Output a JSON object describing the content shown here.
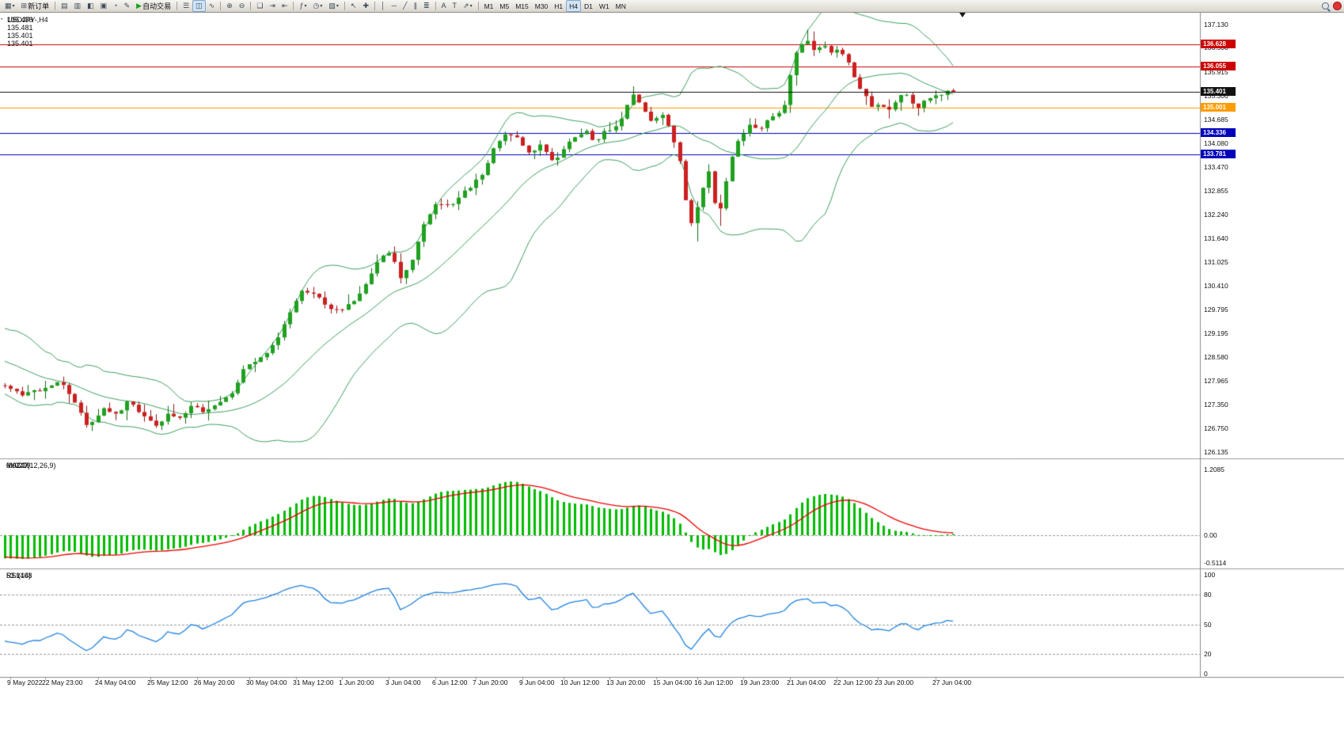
{
  "toolbar": {
    "items": [
      {
        "name": "new-chart-button",
        "icon": "▦",
        "icon_name": "new-chart-icon",
        "arrow": true
      },
      {
        "name": "new-order-button",
        "icon": "⊞",
        "icon_name": "new-order-icon",
        "label": "新订单"
      },
      {
        "type": "sep"
      },
      {
        "name": "market-watch-button",
        "icon": "▤",
        "icon_name": "market-watch-icon"
      },
      {
        "name": "data-window-button",
        "icon": "▥",
        "icon_name": "data-window-icon"
      },
      {
        "name": "navigator-button",
        "icon": "◧",
        "icon_name": "navigator-icon"
      },
      {
        "name": "terminal-button",
        "icon": "▣",
        "icon_name": "terminal-icon"
      },
      {
        "name": "strategy-tester-button",
        "icon": "◔",
        "icon_name": "strategy-tester-icon"
      },
      {
        "name": "metaeditor-button",
        "icon": "✎",
        "icon_name": "metaeditor-icon"
      },
      {
        "name": "autotrading-button",
        "icon": "▶",
        "icon_name": "autotrading-play-icon",
        "icon_color": "#17a017",
        "label": "自动交易"
      },
      {
        "type": "sep"
      },
      {
        "name": "bar-chart-button",
        "icon": "☰",
        "icon_name": "bar-chart-icon"
      },
      {
        "name": "candlestick-chart-button",
        "icon": "◫",
        "icon_name": "candlestick-chart-icon",
        "active": true
      },
      {
        "name": "line-chart-button",
        "icon": "∿",
        "icon_name": "line-chart-icon"
      },
      {
        "type": "sep"
      },
      {
        "name": "zoom-in-button",
        "icon": "⊕",
        "icon_name": "zoom-in-icon"
      },
      {
        "name": "zoom-out-button",
        "icon": "⊖",
        "icon_name": "zoom-out-icon"
      },
      {
        "type": "sep"
      },
      {
        "name": "tile-windows-button",
        "icon": "❏",
        "icon_name": "tile-windows-icon"
      },
      {
        "name": "auto-scroll-button",
        "icon": "⇥",
        "icon_name": "auto-scroll-icon"
      },
      {
        "name": "chart-shift-button",
        "icon": "⇤",
        "icon_name": "chart-shift-icon"
      },
      {
        "type": "sep"
      },
      {
        "name": "indicators-button",
        "icon": "ƒ",
        "icon_name": "indicators-icon",
        "arrow": true
      },
      {
        "name": "periods-button",
        "icon": "◷",
        "icon_name": "periods-icon",
        "arrow": true
      },
      {
        "name": "templates-button",
        "icon": "▨",
        "icon_name": "templates-icon",
        "arrow": true
      },
      {
        "type": "sep"
      },
      {
        "name": "cursor-button",
        "icon": "↖",
        "icon_name": "cursor-icon"
      },
      {
        "name": "crosshair-button",
        "icon": "✚",
        "icon_name": "crosshair-icon"
      },
      {
        "type": "sep"
      },
      {
        "name": "vertical-line-button",
        "icon": "│",
        "icon_name": "vertical-line-icon"
      },
      {
        "name": "horizontal-line-button",
        "icon": "─",
        "icon_name": "horizontal-line-icon"
      },
      {
        "name": "trendline-button",
        "icon": "╱",
        "icon_name": "trendline-icon"
      },
      {
        "name": "channel-button",
        "icon": "∥",
        "icon_name": "equidistant-channel-icon"
      },
      {
        "name": "fibonacci-button",
        "icon": "≣",
        "icon_name": "fibonacci-icon"
      },
      {
        "type": "sep"
      },
      {
        "name": "text-button",
        "icon": "A",
        "icon_name": "text-icon"
      },
      {
        "name": "text-label-button",
        "icon": "T",
        "icon_name": "text-label-icon"
      },
      {
        "name": "arrows-button",
        "icon": "⇗",
        "icon_name": "arrows-icon",
        "arrow": true
      },
      {
        "type": "sep"
      }
    ],
    "timeframes": [
      "M1",
      "M5",
      "M15",
      "M30",
      "H1",
      "H4",
      "D1",
      "W1",
      "MN"
    ],
    "active_timeframe": "H4"
  },
  "chart": {
    "title": "USDJPY-,H4",
    "ohlc": "135.438 135.481 135.401 135.401",
    "price_axis_labels": [
      "137.130",
      "136.530",
      "135.915",
      "135.300",
      "134.685",
      "134.080",
      "133.470",
      "132.855",
      "132.240",
      "131.640",
      "131.025",
      "130.410",
      "129.795",
      "129.195",
      "128.580",
      "127.965",
      "127.350",
      "126.750",
      "126.135"
    ],
    "levels": [
      {
        "value": 136.628,
        "tag": "136.628",
        "color": "#cc0000"
      },
      {
        "value": 136.055,
        "tag": "136.055",
        "color": "#cc0000"
      },
      {
        "value": 135.001,
        "tag": "135.001",
        "color": "#ff9c00"
      },
      {
        "value": 134.336,
        "tag": "134.336",
        "color": "#0000bb"
      },
      {
        "value": 133.781,
        "tag": "133.781",
        "color": "#0000bb"
      }
    ],
    "bid": {
      "value": 135.401,
      "tag": "135.401",
      "color": "#111111"
    },
    "time_axis": [
      {
        "i": 1,
        "label": "9 May 2022"
      },
      {
        "i": 7,
        "label": "22 May 23:00"
      },
      {
        "i": 16,
        "label": "24 May 04:00"
      },
      {
        "i": 25,
        "label": "25 May 12:00"
      },
      {
        "i": 33,
        "label": "26 May 20:00"
      },
      {
        "i": 42,
        "label": "30 May 04:00"
      },
      {
        "i": 50,
        "label": "31 May 12:00"
      },
      {
        "i": 58,
        "label": "1 Jun 20:00"
      },
      {
        "i": 66,
        "label": "3 Jun 04:00"
      },
      {
        "i": 74,
        "label": "6 Jun 12:00"
      },
      {
        "i": 81,
        "label": "7 Jun 20:00"
      },
      {
        "i": 89,
        "label": "9 Jun 04:00"
      },
      {
        "i": 96,
        "label": "10 Jun 12:00"
      },
      {
        "i": 104,
        "label": "13 Jun 20:00"
      },
      {
        "i": 112,
        "label": "15 Jun 04:00"
      },
      {
        "i": 119,
        "label": "16 Jun 12:00"
      },
      {
        "i": 127,
        "label": "19 Jun 23:00"
      },
      {
        "i": 135,
        "label": "21 Jun 04:00"
      },
      {
        "i": 143,
        "label": "22 Jun 12:00"
      },
      {
        "i": 150,
        "label": "23 Jun 20:00"
      },
      {
        "i": 160,
        "label": "27 Jun 04:00"
      }
    ]
  },
  "macd": {
    "name": "MACD(12,26,9)",
    "value": "0.0247",
    "signal": "-0.0219",
    "scale": [
      {
        "v": 1.2085,
        "label": "1.2085"
      },
      {
        "v": 0,
        "label": "0.00"
      },
      {
        "v": -0.5114,
        "label": "-0.5114"
      }
    ]
  },
  "rsi": {
    "name": "RSI(14)",
    "value": "53.1468",
    "scale": [
      {
        "v": 100,
        "label": "100"
      },
      {
        "v": 80,
        "label": "80"
      },
      {
        "v": 50,
        "label": "50"
      },
      {
        "v": 20,
        "label": "20"
      },
      {
        "v": 0,
        "label": "0"
      }
    ],
    "levels": [
      80,
      50,
      20
    ]
  },
  "chart_data": {
    "type": "candlestick",
    "symbol": "USDJPY-",
    "timeframe": "H4",
    "candle_count": 164,
    "visible_price_range": {
      "min": 126.135,
      "max": 137.13
    },
    "price_anchors": [
      [
        0,
        127.85
      ],
      [
        4,
        127.6
      ],
      [
        7,
        127.75
      ],
      [
        10,
        128.0
      ],
      [
        12,
        127.55
      ],
      [
        15,
        126.75
      ],
      [
        18,
        127.3
      ],
      [
        20,
        127.05
      ],
      [
        22,
        127.45
      ],
      [
        24,
        127.1
      ],
      [
        27,
        126.75
      ],
      [
        29,
        127.15
      ],
      [
        31,
        127.0
      ],
      [
        33,
        127.35
      ],
      [
        35,
        127.15
      ],
      [
        37,
        127.4
      ],
      [
        40,
        127.7
      ],
      [
        42,
        128.35
      ],
      [
        44,
        128.5
      ],
      [
        46,
        128.7
      ],
      [
        48,
        129.2
      ],
      [
        50,
        129.8
      ],
      [
        52,
        130.35
      ],
      [
        54,
        130.15
      ],
      [
        56,
        129.9
      ],
      [
        58,
        129.75
      ],
      [
        61,
        130.0
      ],
      [
        63,
        130.5
      ],
      [
        65,
        131.15
      ],
      [
        67,
        131.25
      ],
      [
        69,
        130.55
      ],
      [
        71,
        131.2
      ],
      [
        73,
        132.1
      ],
      [
        75,
        132.55
      ],
      [
        77,
        132.45
      ],
      [
        79,
        132.75
      ],
      [
        81,
        133.0
      ],
      [
        83,
        133.35
      ],
      [
        85,
        134.0
      ],
      [
        87,
        134.35
      ],
      [
        89,
        134.15
      ],
      [
        91,
        133.8
      ],
      [
        93,
        134.05
      ],
      [
        95,
        133.55
      ],
      [
        97,
        134.0
      ],
      [
        99,
        134.3
      ],
      [
        101,
        134.45
      ],
      [
        102,
        134.1
      ],
      [
        104,
        134.4
      ],
      [
        106,
        134.55
      ],
      [
        108,
        135.15
      ],
      [
        109,
        135.35
      ],
      [
        111,
        134.85
      ],
      [
        112,
        134.6
      ],
      [
        114,
        134.85
      ],
      [
        115,
        134.35
      ],
      [
        117,
        133.5
      ],
      [
        118,
        132.3
      ],
      [
        119,
        131.85
      ],
      [
        120,
        132.7
      ],
      [
        122,
        133.45
      ],
      [
        123,
        132.1
      ],
      [
        124,
        132.5
      ],
      [
        125,
        133.3
      ],
      [
        126,
        133.95
      ],
      [
        128,
        134.4
      ],
      [
        129,
        134.6
      ],
      [
        130,
        134.35
      ],
      [
        132,
        134.75
      ],
      [
        134,
        134.9
      ],
      [
        135,
        135.1
      ],
      [
        136,
        136.2
      ],
      [
        138,
        136.65
      ],
      [
        139,
        136.7
      ],
      [
        140,
        136.45
      ],
      [
        142,
        136.6
      ],
      [
        143,
        136.35
      ],
      [
        144,
        136.5
      ],
      [
        146,
        136.15
      ],
      [
        147,
        135.65
      ],
      [
        149,
        135.25
      ],
      [
        150,
        134.9
      ],
      [
        151,
        135.15
      ],
      [
        153,
        134.9
      ],
      [
        154,
        135.2
      ],
      [
        155,
        135.4
      ],
      [
        157,
        135.05
      ],
      [
        158,
        134.95
      ],
      [
        159,
        135.2
      ],
      [
        161,
        135.3
      ],
      [
        162,
        135.35
      ],
      [
        163,
        135.401
      ]
    ],
    "wick_marks": [
      {
        "i": 119,
        "low": 131.55
      },
      {
        "i": 123,
        "low": 131.95
      },
      {
        "i": 138,
        "high": 137.0
      },
      {
        "i": 139,
        "high": 136.95
      }
    ],
    "last_candle": {
      "open": 135.438,
      "high": 135.481,
      "low": 135.401,
      "close": 135.401
    },
    "overlays": [
      {
        "name": "Bollinger Bands",
        "period": 20,
        "deviation": 2,
        "color": "#3fa05f"
      }
    ],
    "indicators": [
      {
        "name": "MACD",
        "params": [
          12,
          26,
          9
        ],
        "histogram_color": "#00bb00",
        "signal_color": "#ee0000"
      },
      {
        "name": "RSI",
        "params": [
          14
        ],
        "color": "#1e82e0"
      }
    ],
    "colors": {
      "bull": "#1fa11f",
      "bear": "#cc2020",
      "bull_wick": "#156e15",
      "bear_wick": "#8f1717"
    }
  }
}
